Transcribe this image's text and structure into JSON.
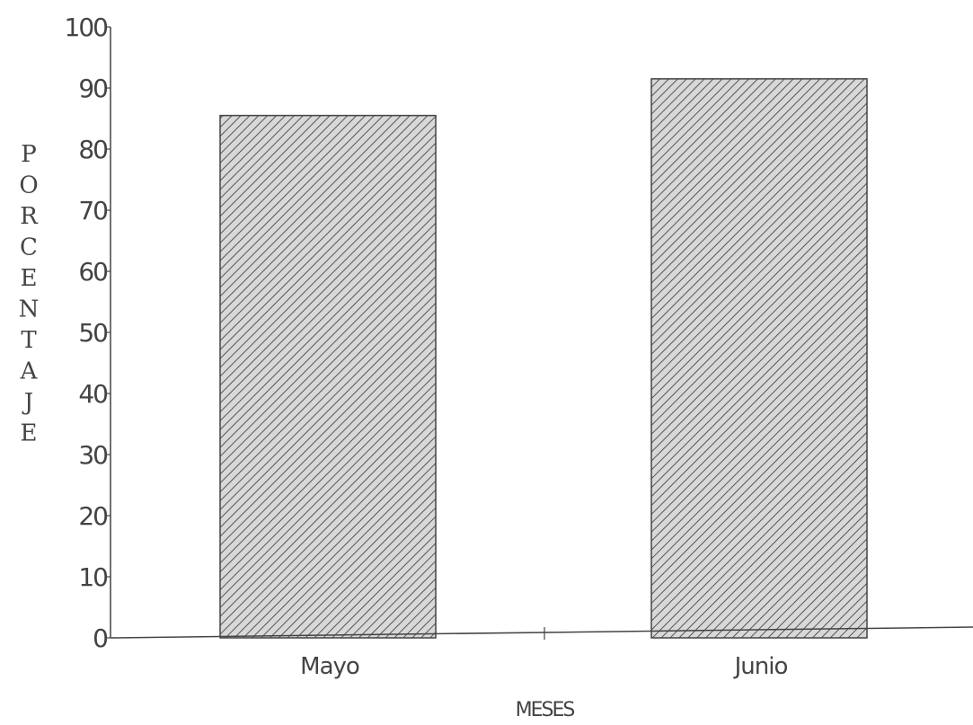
{
  "chart_data": {
    "type": "bar",
    "categories": [
      "Mayo",
      "Junio"
    ],
    "values": [
      85.5,
      91.5
    ],
    "xlabel": "MESES",
    "ylabel": "PORCENTAJE",
    "ylim": [
      0,
      100
    ],
    "yticks": [
      0,
      10,
      20,
      30,
      40,
      50,
      60,
      70,
      80,
      90,
      100
    ],
    "grid": false,
    "legend": "none",
    "bar_fill": "hatched",
    "bar_color": "#d8d8d8",
    "hatch_color": "#555555",
    "axis_color": "#444444"
  }
}
